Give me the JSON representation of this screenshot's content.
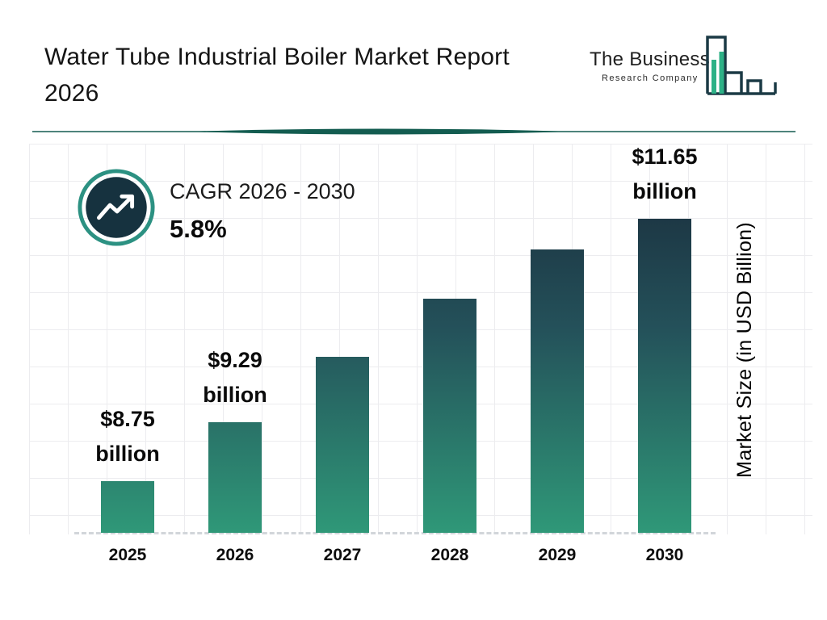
{
  "header": {
    "title_line1": "Water Tube Industrial Boiler Market Report",
    "title_line2": "2026",
    "logo": {
      "line1": "The Business",
      "line2": "Research Company"
    }
  },
  "cagr": {
    "label": "CAGR 2026 - 2030",
    "value": "5.8%"
  },
  "chart_data": {
    "type": "bar",
    "title": "Water Tube Industrial Boiler Market Report 2026",
    "categories": [
      "2025",
      "2026",
      "2027",
      "2028",
      "2029",
      "2030"
    ],
    "values": [
      8.75,
      9.29,
      9.83,
      10.4,
      11.0,
      11.65
    ],
    "bar_labels": [
      {
        "amount": "$8.75",
        "unit": "billion"
      },
      {
        "amount": "$9.29",
        "unit": "billion"
      },
      null,
      null,
      null,
      {
        "amount": "$11.65",
        "unit": "billion"
      }
    ],
    "xlabel": "",
    "ylabel": "Market Size (in USD Billion)",
    "ylim": [
      8,
      12
    ],
    "grid": true,
    "legend": false
  },
  "colors": {
    "bar_gradient_top": "#1d3845",
    "bar_gradient_bottom": "#2f9878",
    "divider_teal": "#135c50",
    "badge_ring": "#2c9182",
    "badge_fill": "#16323f",
    "logo_green": "#2db186",
    "logo_outline": "#1b3a45",
    "gridline": "#ececef"
  }
}
